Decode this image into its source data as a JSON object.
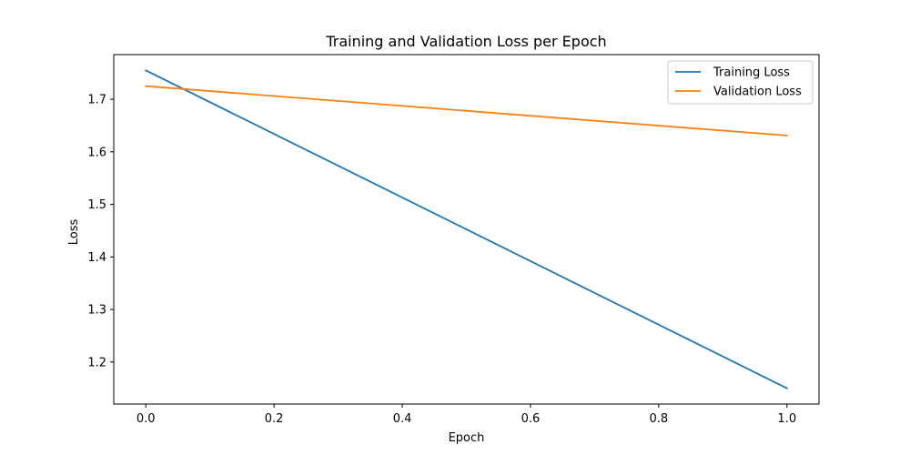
{
  "chart_data": {
    "type": "line",
    "title": "Training and Validation Loss per Epoch",
    "xlabel": "Epoch",
    "ylabel": "Loss",
    "xlim": [
      -0.05,
      1.05
    ],
    "ylim": [
      1.12,
      1.785
    ],
    "xticks": [
      0.0,
      0.2,
      0.4,
      0.6,
      0.8,
      1.0
    ],
    "xtick_labels": [
      "0.0",
      "0.2",
      "0.4",
      "0.6",
      "0.8",
      "1.0"
    ],
    "yticks": [
      1.2,
      1.3,
      1.4,
      1.5,
      1.6,
      1.7
    ],
    "ytick_labels": [
      "1.2",
      "1.3",
      "1.4",
      "1.5",
      "1.6",
      "1.7"
    ],
    "grid": false,
    "legend_position": "top-right",
    "series": [
      {
        "name": "Training Loss",
        "color": "#1f77b4",
        "x": [
          0,
          1
        ],
        "y": [
          1.755,
          1.15
        ]
      },
      {
        "name": "Validation Loss",
        "color": "#ff7f0e",
        "x": [
          0,
          1
        ],
        "y": [
          1.725,
          1.631
        ]
      }
    ]
  }
}
